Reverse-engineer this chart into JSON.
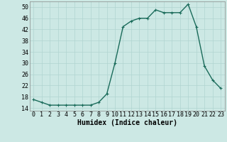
{
  "x": [
    0,
    1,
    2,
    3,
    4,
    5,
    6,
    7,
    8,
    9,
    10,
    11,
    12,
    13,
    14,
    15,
    16,
    17,
    18,
    19,
    20,
    21,
    22,
    23
  ],
  "y": [
    17,
    16,
    15,
    15,
    15,
    15,
    15,
    15,
    16,
    19,
    30,
    43,
    45,
    46,
    46,
    49,
    48,
    48,
    48,
    51,
    43,
    29,
    24,
    21
  ],
  "line_color": "#1a6b5a",
  "marker": "+",
  "marker_size": 3,
  "marker_color": "#1a6b5a",
  "bg_color": "#cce8e4",
  "grid_color": "#b0d4d0",
  "xlabel": "Humidex (Indice chaleur)",
  "xlim": [
    -0.5,
    23.5
  ],
  "ylim": [
    13,
    52
  ],
  "yticks": [
    14,
    18,
    22,
    26,
    30,
    34,
    38,
    42,
    46,
    50
  ],
  "ytick_labels": [
    "14",
    "18",
    "22",
    "26",
    "30",
    "34",
    "38",
    "42",
    "46",
    "50"
  ],
  "font_size_xlabel": 7,
  "font_size_ticks": 6,
  "line_width": 1.0
}
